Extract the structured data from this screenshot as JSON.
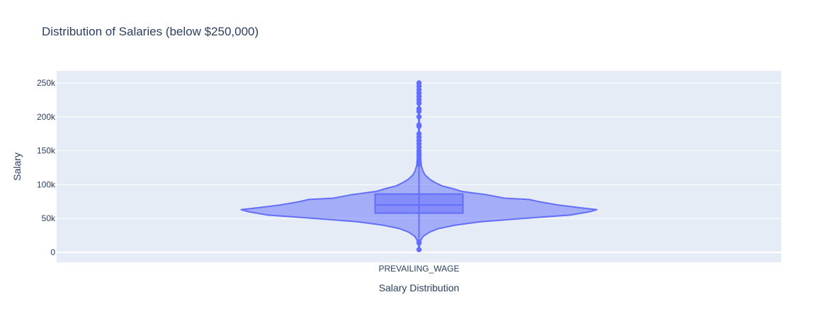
{
  "chart_data": {
    "type": "violin",
    "title": "Distribution of Salaries (below $250,000)",
    "xlabel": "Salary Distribution",
    "ylabel": "Salary",
    "categories": [
      "PREVAILING_WAGE"
    ],
    "ylim": [
      -12000,
      250000
    ],
    "yticks": [
      0,
      50000,
      100000,
      150000,
      200000,
      250000
    ],
    "ytick_labels": [
      "0",
      "50k",
      "100k",
      "150k",
      "200k",
      "250k"
    ],
    "grid": true,
    "series": [
      {
        "color": "#636efa",
        "box": {
          "min": 21000,
          "q1": 58000,
          "median": 70000,
          "q3": 86000,
          "max": 128000
        },
        "density": [
          [
            4000,
            0.0
          ],
          [
            12000,
            0.004
          ],
          [
            18000,
            0.01
          ],
          [
            24000,
            0.025
          ],
          [
            30000,
            0.06
          ],
          [
            35000,
            0.11
          ],
          [
            40000,
            0.2
          ],
          [
            45000,
            0.34
          ],
          [
            50000,
            0.58
          ],
          [
            55000,
            0.85
          ],
          [
            60000,
            0.96
          ],
          [
            63000,
            1.0
          ],
          [
            66000,
            0.9
          ],
          [
            70000,
            0.78
          ],
          [
            75000,
            0.67
          ],
          [
            78000,
            0.62
          ],
          [
            80000,
            0.48
          ],
          [
            85000,
            0.38
          ],
          [
            90000,
            0.24
          ],
          [
            94000,
            0.19
          ],
          [
            98000,
            0.13
          ],
          [
            103000,
            0.09
          ],
          [
            108000,
            0.06
          ],
          [
            114000,
            0.035
          ],
          [
            120000,
            0.022
          ],
          [
            128000,
            0.013
          ],
          [
            136000,
            0.01
          ],
          [
            142000,
            0.007
          ],
          [
            152000,
            0.004
          ],
          [
            160000,
            0.003
          ],
          [
            170000,
            0.002
          ],
          [
            185000,
            0.002
          ],
          [
            205000,
            0.0015
          ],
          [
            225000,
            0.001
          ],
          [
            240000,
            0.001
          ],
          [
            250000,
            0.0
          ]
        ],
        "outliers": [
          4000,
          14000,
          16000,
          130000,
          134000,
          138000,
          142000,
          146000,
          150000,
          155000,
          160000,
          165000,
          170000,
          175000,
          186000,
          188000,
          200000,
          208000,
          212000,
          220000,
          225000,
          230000,
          235000,
          240000,
          245000,
          250000
        ]
      }
    ]
  }
}
